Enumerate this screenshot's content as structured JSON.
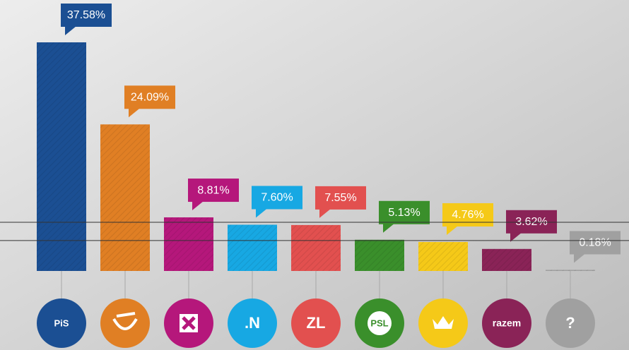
{
  "chart_data": {
    "type": "bar",
    "categories": [
      "PiS",
      null,
      null,
      ".N",
      "ZL",
      "PSL",
      null,
      "razem",
      "?"
    ],
    "values": [
      37.58,
      24.09,
      8.81,
      7.6,
      7.55,
      5.13,
      4.76,
      3.62,
      0.18
    ],
    "value_labels": [
      "37.58%",
      "24.09%",
      "8.81%",
      "7.60%",
      "7.55%",
      "5.13%",
      "4.76%",
      "3.62%",
      "0.18%"
    ],
    "colors": [
      "#1b4f93",
      "#e07f24",
      "#b5177b",
      "#17a8e3",
      "#e2504f",
      "#3a8f2b",
      "#f5c918",
      "#8a2357",
      "#a0a0a0"
    ],
    "threshold_lines": [
      8,
      5
    ]
  }
}
